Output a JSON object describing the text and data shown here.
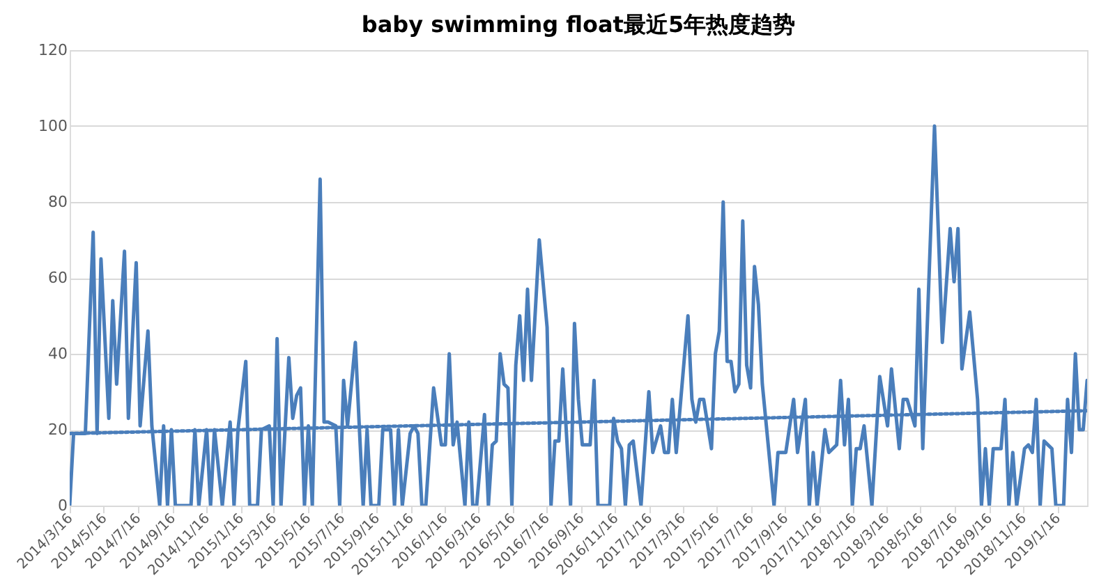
{
  "chart_data": {
    "type": "line",
    "title": "baby swimming float最近5年热度趋势",
    "xlim": [
      "2014-03-16",
      "2019-03-10"
    ],
    "xticks": [
      {
        "value": "2014-03-16",
        "label": "2014/3/16"
      },
      {
        "value": "2014-05-16",
        "label": "2014/5/16"
      },
      {
        "value": "2014-07-16",
        "label": "2014/7/16"
      },
      {
        "value": "2014-09-16",
        "label": "2014/9/16"
      },
      {
        "value": "2014-11-16",
        "label": "2014/11/16"
      },
      {
        "value": "2015-01-16",
        "label": "2015/1/16"
      },
      {
        "value": "2015-03-16",
        "label": "2015/3/16"
      },
      {
        "value": "2015-05-16",
        "label": "2015/5/16"
      },
      {
        "value": "2015-07-16",
        "label": "2015/7/16"
      },
      {
        "value": "2015-09-16",
        "label": "2015/9/16"
      },
      {
        "value": "2015-11-16",
        "label": "2015/11/16"
      },
      {
        "value": "2016-01-16",
        "label": "2016/1/16"
      },
      {
        "value": "2016-03-16",
        "label": "2016/3/16"
      },
      {
        "value": "2016-05-16",
        "label": "2016/5/16"
      },
      {
        "value": "2016-07-16",
        "label": "2016/7/16"
      },
      {
        "value": "2016-09-16",
        "label": "2016/9/16"
      },
      {
        "value": "2016-11-16",
        "label": "2016/11/16"
      },
      {
        "value": "2017-01-16",
        "label": "2017/1/16"
      },
      {
        "value": "2017-03-16",
        "label": "2017/3/16"
      },
      {
        "value": "2017-05-16",
        "label": "2017/5/16"
      },
      {
        "value": "2017-07-16",
        "label": "2017/7/16"
      },
      {
        "value": "2017-09-16",
        "label": "2017/9/16"
      },
      {
        "value": "2017-11-16",
        "label": "2017/11/16"
      },
      {
        "value": "2018-01-16",
        "label": "2018/1/16"
      },
      {
        "value": "2018-03-16",
        "label": "2018/3/16"
      },
      {
        "value": "2018-05-16",
        "label": "2018/5/16"
      },
      {
        "value": "2018-07-16",
        "label": "2018/7/16"
      },
      {
        "value": "2018-09-16",
        "label": "2018/9/16"
      },
      {
        "value": "2018-11-16",
        "label": "2018/11/16"
      },
      {
        "value": "2019-01-16",
        "label": "2019/1/16"
      }
    ],
    "ylim": [
      0,
      120
    ],
    "yticks": [
      0,
      20,
      40,
      60,
      80,
      100,
      120
    ],
    "grid": "y",
    "series": [
      {
        "color": "#4a7ebb",
        "line_style": "solid",
        "x": [
          "2014-03-16",
          "2014-03-23",
          "2014-04-13",
          "2014-04-27",
          "2014-05-04",
          "2014-05-11",
          "2014-05-25",
          "2014-06-01",
          "2014-06-08",
          "2014-06-22",
          "2014-06-29",
          "2014-07-13",
          "2014-07-20",
          "2014-08-03",
          "2014-08-10",
          "2014-08-24",
          "2014-08-31",
          "2014-09-07",
          "2014-09-14",
          "2014-09-21",
          "2014-10-19",
          "2014-10-26",
          "2014-11-02",
          "2014-11-16",
          "2014-11-23",
          "2014-11-30",
          "2014-12-14",
          "2014-12-28",
          "2015-01-04",
          "2015-01-11",
          "2015-01-25",
          "2015-02-01",
          "2015-02-15",
          "2015-02-22",
          "2015-03-08",
          "2015-03-15",
          "2015-03-22",
          "2015-03-29",
          "2015-04-12",
          "2015-04-19",
          "2015-04-26",
          "2015-05-03",
          "2015-05-10",
          "2015-05-17",
          "2015-05-24",
          "2015-06-07",
          "2015-06-14",
          "2015-06-21",
          "2015-07-05",
          "2015-07-12",
          "2015-07-19",
          "2015-07-26",
          "2015-08-09",
          "2015-08-16",
          "2015-08-23",
          "2015-08-30",
          "2015-09-06",
          "2015-09-20",
          "2015-09-27",
          "2015-10-11",
          "2015-10-18",
          "2015-10-25",
          "2015-11-01",
          "2015-11-15",
          "2015-11-22",
          "2015-11-29",
          "2015-12-06",
          "2015-12-13",
          "2015-12-27",
          "2016-01-10",
          "2016-01-17",
          "2016-01-24",
          "2016-01-31",
          "2016-02-07",
          "2016-02-21",
          "2016-02-28",
          "2016-03-06",
          "2016-03-13",
          "2016-03-27",
          "2016-04-03",
          "2016-04-10",
          "2016-04-17",
          "2016-04-24",
          "2016-05-01",
          "2016-05-08",
          "2016-05-15",
          "2016-05-22",
          "2016-05-29",
          "2016-06-05",
          "2016-06-12",
          "2016-06-19",
          "2016-07-03",
          "2016-07-17",
          "2016-07-24",
          "2016-07-31",
          "2016-08-07",
          "2016-08-14",
          "2016-08-28",
          "2016-09-04",
          "2016-09-11",
          "2016-09-18",
          "2016-10-02",
          "2016-10-09",
          "2016-10-16",
          "2016-11-06",
          "2016-11-13",
          "2016-11-20",
          "2016-11-27",
          "2016-12-04",
          "2016-12-11",
          "2016-12-18",
          "2017-01-01",
          "2017-01-15",
          "2017-01-22",
          "2017-02-05",
          "2017-02-12",
          "2017-02-19",
          "2017-02-26",
          "2017-03-05",
          "2017-03-26",
          "2017-04-02",
          "2017-04-09",
          "2017-04-16",
          "2017-04-23",
          "2017-05-07",
          "2017-05-14",
          "2017-05-21",
          "2017-05-28",
          "2017-06-04",
          "2017-06-11",
          "2017-06-18",
          "2017-06-25",
          "2017-07-02",
          "2017-07-09",
          "2017-07-16",
          "2017-07-23",
          "2017-07-30",
          "2017-08-06",
          "2017-08-27",
          "2017-09-03",
          "2017-09-17",
          "2017-10-01",
          "2017-10-08",
          "2017-10-22",
          "2017-10-29",
          "2017-11-05",
          "2017-11-12",
          "2017-11-26",
          "2017-12-03",
          "2017-12-17",
          "2017-12-24",
          "2017-12-31",
          "2018-01-07",
          "2018-01-14",
          "2018-01-21",
          "2018-01-28",
          "2018-02-04",
          "2018-02-18",
          "2018-03-04",
          "2018-03-18",
          "2018-03-25",
          "2018-04-08",
          "2018-04-15",
          "2018-04-22",
          "2018-05-06",
          "2018-05-13",
          "2018-05-20",
          "2018-06-10",
          "2018-06-24",
          "2018-07-08",
          "2018-07-15",
          "2018-07-22",
          "2018-07-29",
          "2018-08-12",
          "2018-08-26",
          "2018-09-02",
          "2018-09-09",
          "2018-09-16",
          "2018-09-23",
          "2018-10-07",
          "2018-10-14",
          "2018-10-21",
          "2018-10-28",
          "2018-11-04",
          "2018-11-18",
          "2018-11-25",
          "2018-12-02",
          "2018-12-09",
          "2018-12-16",
          "2018-12-23",
          "2019-01-06",
          "2019-01-13",
          "2019-01-27",
          "2019-02-03",
          "2019-02-10",
          "2019-02-17",
          "2019-02-24",
          "2019-03-03",
          "2019-03-10"
        ],
        "values": [
          0,
          19,
          19,
          72,
          19,
          65,
          23,
          54,
          32,
          67,
          23,
          64,
          21,
          46,
          21,
          0,
          21,
          0,
          20,
          0,
          0,
          20,
          0,
          20,
          0,
          20,
          0,
          22,
          0,
          20,
          38,
          0,
          0,
          20,
          21,
          0,
          44,
          0,
          39,
          23,
          29,
          31,
          0,
          21,
          0,
          86,
          22,
          22,
          21,
          0,
          33,
          21,
          43,
          21,
          0,
          20,
          0,
          0,
          20,
          20,
          0,
          20,
          0,
          19,
          21,
          19,
          0,
          0,
          31,
          16,
          16,
          40,
          16,
          22,
          0,
          22,
          0,
          0,
          24,
          0,
          16,
          17,
          40,
          32,
          31,
          0,
          37,
          50,
          33,
          57,
          33,
          70,
          47,
          0,
          17,
          17,
          36,
          0,
          48,
          28,
          16,
          16,
          33,
          0,
          0,
          23,
          17,
          15,
          0,
          16,
          17,
          0,
          30,
          14,
          21,
          14,
          14,
          28,
          14,
          50,
          28,
          22,
          28,
          28,
          15,
          40,
          46,
          80,
          38,
          38,
          30,
          32,
          75,
          37,
          31,
          63,
          53,
          32,
          0,
          14,
          14,
          28,
          14,
          28,
          0,
          14,
          0,
          20,
          14,
          16,
          33,
          16,
          28,
          0,
          15,
          15,
          21,
          0,
          34,
          21,
          36,
          15,
          28,
          28,
          21,
          57,
          15,
          100,
          43,
          73,
          59,
          73,
          36,
          51,
          28,
          0,
          15,
          0,
          15,
          15,
          28,
          0,
          14,
          0,
          15,
          16,
          14,
          28,
          0,
          17,
          15,
          0,
          0,
          28,
          14,
          40,
          20,
          20,
          33
        ]
      },
      {
        "color": "#4a7ebb",
        "line_style": "dotted",
        "x": [
          "2014-03-16",
          "2019-03-10"
        ],
        "values": [
          19,
          25
        ]
      }
    ]
  }
}
